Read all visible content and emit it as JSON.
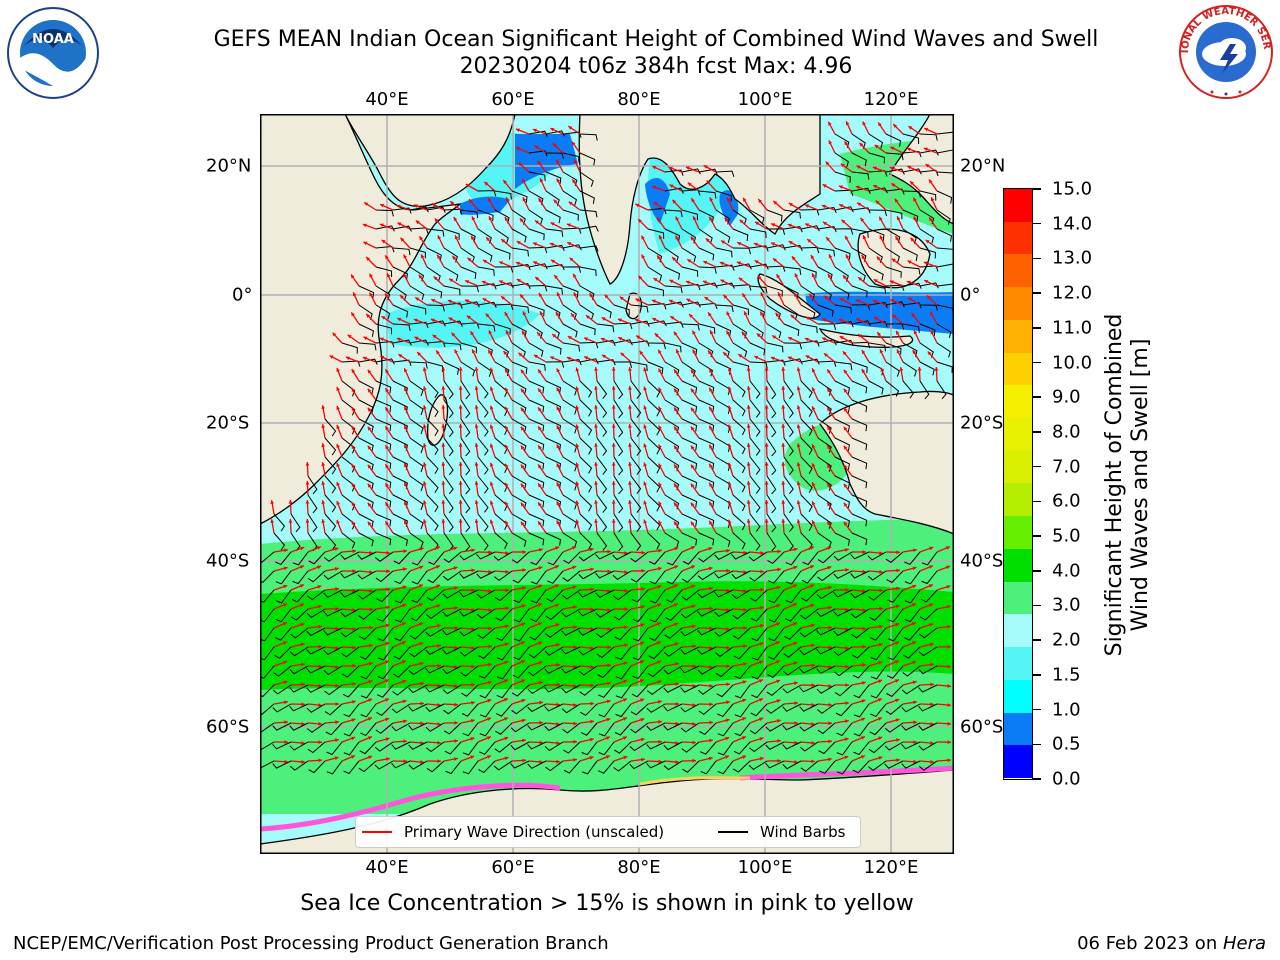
{
  "title": {
    "line1": "GEFS MEAN Indian Ocean Significant Height of Combined Wind Waves and Swell",
    "line2": "20230204 t06z 384h fcst   Max: 4.96"
  },
  "logos": {
    "left": "NOAA",
    "right": "NATIONAL WEATHER SERVICE"
  },
  "map": {
    "lon_ticks": [
      "40°E",
      "60°E",
      "80°E",
      "100°E",
      "120°E"
    ],
    "lat_ticks": [
      "20°N",
      "0°",
      "20°S",
      "40°S",
      "60°S"
    ],
    "colors": {
      "land": "#efecdc",
      "grid": "#b0b0b0",
      "coast": "#000000",
      "arrow": "#ff0000",
      "barb": "#000000"
    }
  },
  "colorbar": {
    "label_line1": "Significant Height of Combined",
    "label_line2": "Wind Waves and Swell [m]",
    "ticks": [
      "0.0",
      "0.5",
      "1.0",
      "1.5",
      "2.0",
      "3.0",
      "4.0",
      "5.0",
      "6.0",
      "7.0",
      "8.0",
      "9.0",
      "10.0",
      "11.0",
      "12.0",
      "13.0",
      "14.0",
      "15.0"
    ],
    "colors": [
      "#0000ff",
      "#0a7cf5",
      "#00ffff",
      "#55f5f5",
      "#a5fafa",
      "#4cf07a",
      "#00e000",
      "#66ee00",
      "#b5ee00",
      "#d8f000",
      "#e6f000",
      "#f5f000",
      "#ffd000",
      "#ffb000",
      "#ff8a00",
      "#ff6000",
      "#ff3000",
      "#ff0000"
    ]
  },
  "legend": {
    "arrow_label": "Primary Wave Direction (unscaled)",
    "barb_label": "Wind Barbs"
  },
  "ice_note": "Sea Ice Concentration > 15% is shown in pink to yellow",
  "footer": {
    "left": "NCEP/EMC/Verification Post Processing Product Generation Branch",
    "right_date": "06 Feb 2023 on ",
    "right_host": "Hera"
  }
}
